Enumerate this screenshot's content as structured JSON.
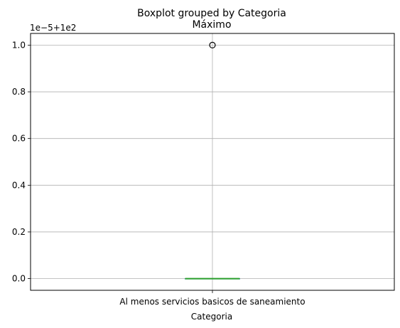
{
  "chart_data": {
    "type": "box",
    "suptitle": "Boxplot grouped by Categoria",
    "title": "Máximo",
    "xlabel": "Categoria",
    "ylabel": "",
    "offset_label": "1e−5+1e2",
    "categories": [
      "Al menos servicios basicos de saneamiento"
    ],
    "y_ticks": [
      "0.0",
      "0.2",
      "0.4",
      "0.6",
      "0.8",
      "1.0"
    ],
    "y_tick_values": [
      0.0,
      0.2,
      0.4,
      0.6,
      0.8,
      1.0
    ],
    "ylim": [
      -0.05,
      1.05
    ],
    "grid": true,
    "boxes": [
      {
        "category": "Al menos servicios basicos de saneamiento",
        "whisker_low": 0.0,
        "q1": 0.0,
        "median": 0.0,
        "q3": 0.0,
        "whisker_high": 0.0,
        "outliers": [
          1.0
        ]
      }
    ],
    "colors": {
      "box": "#1f77b4",
      "median": "#2ca02c",
      "grid": "#b0b0b0",
      "axes": "#000000"
    }
  }
}
